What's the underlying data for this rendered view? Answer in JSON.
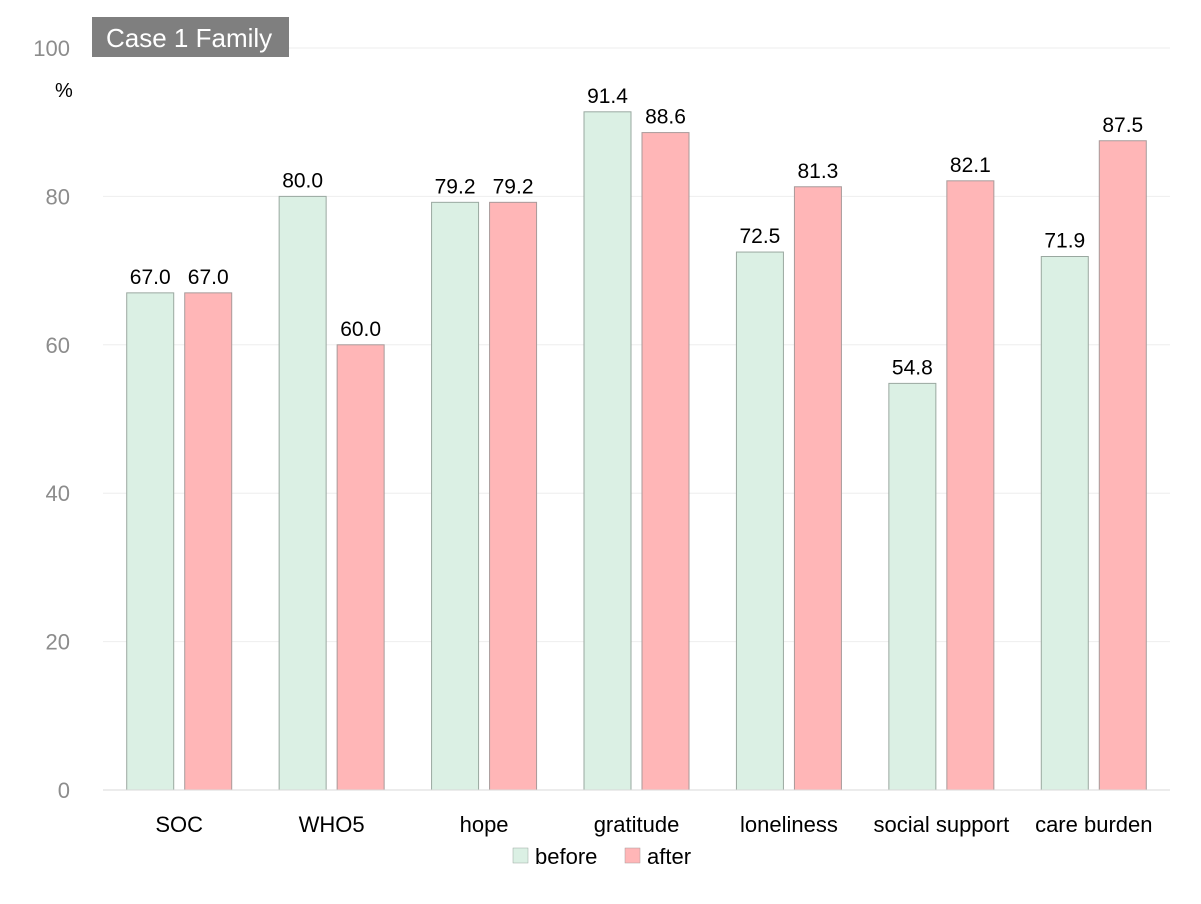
{
  "chart_data": {
    "type": "bar",
    "title": "Case 1 Family",
    "ylabel": "%",
    "xlabel": "",
    "ylim": [
      0,
      100
    ],
    "yticks": [
      0,
      20,
      40,
      60,
      80,
      100
    ],
    "grid": true,
    "legend_position": "bottom",
    "categories": [
      "SOC",
      "WHO5",
      "hope",
      "gratitude",
      "loneliness",
      "social support",
      "care burden"
    ],
    "series": [
      {
        "name": "before",
        "color": "#dbf0e4",
        "stroke": "#9aa8a0",
        "values": [
          67.0,
          80.0,
          79.2,
          91.4,
          72.5,
          54.8,
          71.9
        ],
        "labels": [
          "67.0",
          "80.0",
          "79.2",
          "91.4",
          "72.5",
          "54.8",
          "71.9"
        ]
      },
      {
        "name": "after",
        "color": "#ffb6b7",
        "stroke": "#a89a9a",
        "values": [
          67.0,
          60.0,
          79.2,
          88.6,
          81.3,
          82.1,
          87.5
        ],
        "labels": [
          "67.0",
          "60.0",
          "79.2",
          "88.6",
          "81.3",
          "82.1",
          "87.5"
        ]
      }
    ]
  }
}
